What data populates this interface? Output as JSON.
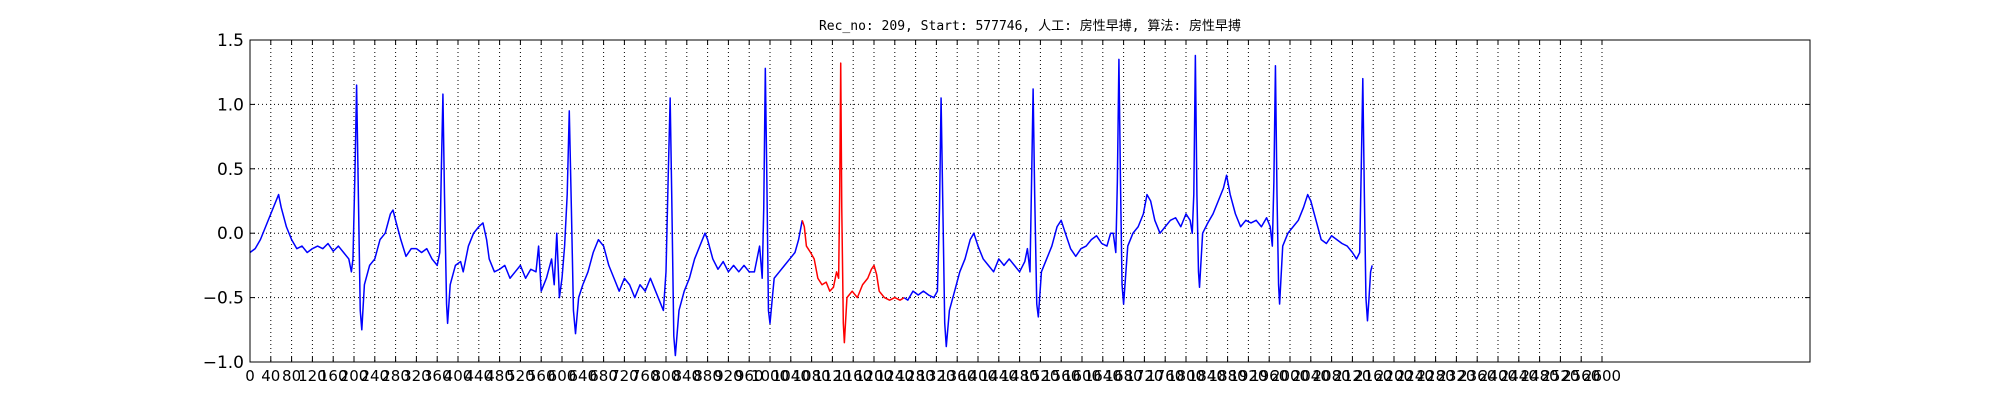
{
  "chart_data": {
    "type": "line",
    "title": "Rec_no: 209, Start: 577746, 人工: 房性早搏, 算法: 房性早搏",
    "xlabel": "",
    "ylabel": "",
    "xlim": [
      0,
      3000
    ],
    "ylim": [
      -1.0,
      1.5
    ],
    "grid": true,
    "y_ticks": [
      -1.0,
      -0.5,
      0.0,
      0.5,
      1.0,
      1.5
    ],
    "y_tick_labels": [
      "−1.0",
      "−0.5",
      "0.0",
      "0.5",
      "1.0",
      "1.5"
    ],
    "x_ticks": [
      0,
      40,
      80,
      120,
      160,
      200,
      240,
      280,
      320,
      360,
      400,
      440,
      480,
      520,
      560,
      600,
      640,
      680,
      720,
      760,
      800,
      840,
      880,
      920,
      960,
      1000,
      1040,
      1080,
      1120,
      1160,
      1200,
      1240,
      1280,
      1320,
      1360,
      1400,
      1440,
      1480,
      1520,
      1560,
      1600,
      1640,
      1680,
      1720,
      1760,
      1800,
      1840,
      1880,
      1920,
      1960,
      2000,
      2040,
      2080,
      2120,
      2160,
      2200,
      2240,
      2280,
      2320,
      2360,
      2400,
      2440,
      2480,
      2520,
      2560,
      2600
    ],
    "x_tick_labels": [
      "0",
      "40",
      "80",
      "120",
      "160",
      "200",
      "240",
      "280",
      "320",
      "360",
      "400",
      "440",
      "480",
      "520",
      "560",
      "600",
      "640",
      "680",
      "720",
      "760",
      "800",
      "840",
      "880",
      "920",
      "960",
      "1000",
      "1040",
      "1080",
      "1120",
      "1160",
      "1200",
      "1240",
      "1280",
      "1320",
      "1360",
      "1400",
      "1440",
      "1480",
      "1520",
      "1560",
      "1600",
      "1640",
      "1680",
      "1720",
      "1760",
      "1800",
      "1840",
      "1880",
      "1920",
      "1960",
      "2000",
      "2040",
      "2080",
      "2120",
      "2160",
      "2200",
      "2240",
      "2280",
      "2320",
      "2360",
      "2400",
      "2440",
      "2480",
      "2520",
      "2560",
      "2600"
    ],
    "colors": {
      "normal": "#0000ff",
      "highlight": "#ff0000"
    },
    "series": [
      {
        "color": "#0000ff",
        "points": [
          [
            0,
            -0.15
          ],
          [
            10,
            -0.12
          ],
          [
            20,
            -0.05
          ],
          [
            30,
            0.05
          ],
          [
            40,
            0.15
          ],
          [
            50,
            0.25
          ],
          [
            55,
            0.3
          ],
          [
            60,
            0.2
          ],
          [
            70,
            0.05
          ],
          [
            80,
            -0.05
          ],
          [
            90,
            -0.12
          ],
          [
            100,
            -0.1
          ],
          [
            110,
            -0.15
          ],
          [
            120,
            -0.12
          ],
          [
            130,
            -0.1
          ],
          [
            140,
            -0.12
          ],
          [
            150,
            -0.08
          ],
          [
            160,
            -0.14
          ],
          [
            170,
            -0.1
          ],
          [
            180,
            -0.15
          ],
          [
            190,
            -0.2
          ],
          [
            195,
            -0.3
          ],
          [
            198,
            -0.2
          ],
          [
            202,
            0.5
          ],
          [
            205,
            1.15
          ],
          [
            208,
            0.4
          ],
          [
            212,
            -0.6
          ],
          [
            215,
            -0.75
          ],
          [
            220,
            -0.4
          ],
          [
            230,
            -0.25
          ],
          [
            240,
            -0.2
          ],
          [
            250,
            -0.05
          ],
          [
            260,
            0.0
          ],
          [
            270,
            0.15
          ],
          [
            275,
            0.18
          ],
          [
            280,
            0.1
          ],
          [
            290,
            -0.05
          ],
          [
            300,
            -0.18
          ],
          [
            310,
            -0.12
          ],
          [
            320,
            -0.12
          ],
          [
            330,
            -0.15
          ],
          [
            340,
            -0.12
          ],
          [
            350,
            -0.2
          ],
          [
            360,
            -0.25
          ],
          [
            365,
            -0.15
          ],
          [
            368,
            0.5
          ],
          [
            371,
            1.08
          ],
          [
            374,
            0.3
          ],
          [
            378,
            -0.55
          ],
          [
            380,
            -0.7
          ],
          [
            385,
            -0.4
          ],
          [
            395,
            -0.25
          ],
          [
            405,
            -0.22
          ],
          [
            410,
            -0.3
          ],
          [
            420,
            -0.1
          ],
          [
            430,
            0.0
          ],
          [
            440,
            0.05
          ],
          [
            448,
            0.08
          ],
          [
            455,
            -0.05
          ],
          [
            460,
            -0.2
          ],
          [
            470,
            -0.3
          ],
          [
            480,
            -0.28
          ],
          [
            490,
            -0.25
          ],
          [
            500,
            -0.35
          ],
          [
            510,
            -0.3
          ],
          [
            520,
            -0.25
          ],
          [
            530,
            -0.35
          ],
          [
            540,
            -0.28
          ],
          [
            550,
            -0.3
          ],
          [
            555,
            -0.1
          ],
          [
            560,
            -0.45
          ],
          [
            570,
            -0.35
          ],
          [
            580,
            -0.2
          ],
          [
            585,
            -0.4
          ],
          [
            590,
            0.0
          ],
          [
            595,
            -0.5
          ],
          [
            600,
            -0.35
          ],
          [
            605,
            -0.1
          ],
          [
            610,
            0.3
          ],
          [
            614,
            0.95
          ],
          [
            618,
            0.2
          ],
          [
            622,
            -0.6
          ],
          [
            626,
            -0.78
          ],
          [
            632,
            -0.5
          ],
          [
            640,
            -0.4
          ],
          [
            650,
            -0.3
          ],
          [
            660,
            -0.15
          ],
          [
            670,
            -0.05
          ],
          [
            680,
            -0.1
          ],
          [
            690,
            -0.25
          ],
          [
            700,
            -0.35
          ],
          [
            710,
            -0.45
          ],
          [
            720,
            -0.35
          ],
          [
            730,
            -0.4
          ],
          [
            740,
            -0.5
          ],
          [
            750,
            -0.4
          ],
          [
            760,
            -0.45
          ],
          [
            770,
            -0.35
          ],
          [
            780,
            -0.45
          ],
          [
            790,
            -0.55
          ],
          [
            795,
            -0.6
          ],
          [
            800,
            -0.3
          ],
          [
            804,
            0.4
          ],
          [
            808,
            1.05
          ],
          [
            811,
            0.3
          ],
          [
            815,
            -0.8
          ],
          [
            818,
            -0.95
          ],
          [
            825,
            -0.6
          ],
          [
            835,
            -0.45
          ],
          [
            845,
            -0.35
          ],
          [
            855,
            -0.2
          ],
          [
            865,
            -0.1
          ],
          [
            875,
            0.0
          ],
          [
            880,
            -0.05
          ],
          [
            890,
            -0.2
          ],
          [
            900,
            -0.28
          ],
          [
            910,
            -0.22
          ],
          [
            920,
            -0.3
          ],
          [
            930,
            -0.25
          ],
          [
            940,
            -0.3
          ],
          [
            950,
            -0.25
          ],
          [
            960,
            -0.3
          ],
          [
            970,
            -0.3
          ],
          [
            975,
            -0.2
          ],
          [
            980,
            -0.1
          ],
          [
            985,
            -0.35
          ],
          [
            988,
            0.2
          ],
          [
            991,
            1.28
          ],
          [
            994,
            0.4
          ],
          [
            997,
            -0.6
          ],
          [
            1000,
            -0.7
          ],
          [
            1008,
            -0.35
          ],
          [
            1018,
            -0.3
          ],
          [
            1028,
            -0.25
          ],
          [
            1038,
            -0.2
          ],
          [
            1048,
            -0.15
          ],
          [
            1055,
            -0.05
          ],
          [
            1062,
            0.1
          ]
        ]
      },
      {
        "color": "#ff0000",
        "points": [
          [
            1062,
            0.1
          ],
          [
            1066,
            0.05
          ],
          [
            1070,
            -0.1
          ],
          [
            1078,
            -0.15
          ],
          [
            1085,
            -0.2
          ],
          [
            1092,
            -0.35
          ],
          [
            1100,
            -0.4
          ],
          [
            1108,
            -0.38
          ],
          [
            1115,
            -0.45
          ],
          [
            1122,
            -0.42
          ],
          [
            1128,
            -0.3
          ],
          [
            1132,
            -0.35
          ],
          [
            1134,
            0.3
          ],
          [
            1136,
            1.32
          ],
          [
            1138,
            0.2
          ],
          [
            1141,
            -0.7
          ],
          [
            1143,
            -0.85
          ],
          [
            1148,
            -0.5
          ],
          [
            1158,
            -0.45
          ],
          [
            1168,
            -0.5
          ],
          [
            1178,
            -0.4
          ],
          [
            1188,
            -0.35
          ],
          [
            1195,
            -0.28
          ],
          [
            1200,
            -0.25
          ],
          [
            1205,
            -0.32
          ],
          [
            1210,
            -0.45
          ],
          [
            1220,
            -0.5
          ],
          [
            1230,
            -0.52
          ],
          [
            1240,
            -0.5
          ],
          [
            1250,
            -0.52
          ],
          [
            1258,
            -0.5
          ]
        ]
      },
      {
        "color": "#0000ff",
        "points": [
          [
            1258,
            -0.5
          ],
          [
            1265,
            -0.52
          ],
          [
            1275,
            -0.45
          ],
          [
            1285,
            -0.48
          ],
          [
            1295,
            -0.45
          ],
          [
            1305,
            -0.48
          ],
          [
            1315,
            -0.5
          ],
          [
            1322,
            -0.45
          ],
          [
            1326,
            0.2
          ],
          [
            1329,
            1.05
          ],
          [
            1332,
            0.3
          ],
          [
            1336,
            -0.7
          ],
          [
            1339,
            -0.88
          ],
          [
            1345,
            -0.6
          ],
          [
            1355,
            -0.45
          ],
          [
            1365,
            -0.3
          ],
          [
            1375,
            -0.2
          ],
          [
            1385,
            -0.05
          ],
          [
            1392,
            0.0
          ],
          [
            1400,
            -0.1
          ],
          [
            1410,
            -0.2
          ],
          [
            1420,
            -0.25
          ],
          [
            1430,
            -0.3
          ],
          [
            1440,
            -0.2
          ],
          [
            1450,
            -0.25
          ],
          [
            1460,
            -0.2
          ],
          [
            1470,
            -0.25
          ],
          [
            1480,
            -0.3
          ],
          [
            1490,
            -0.22
          ],
          [
            1495,
            -0.12
          ],
          [
            1500,
            -0.3
          ],
          [
            1503,
            0.4
          ],
          [
            1506,
            1.12
          ],
          [
            1509,
            0.3
          ],
          [
            1513,
            -0.55
          ],
          [
            1516,
            -0.65
          ],
          [
            1522,
            -0.3
          ],
          [
            1532,
            -0.2
          ],
          [
            1542,
            -0.1
          ],
          [
            1552,
            0.05
          ],
          [
            1560,
            0.1
          ],
          [
            1568,
            0.0
          ],
          [
            1578,
            -0.12
          ],
          [
            1588,
            -0.18
          ],
          [
            1598,
            -0.12
          ],
          [
            1608,
            -0.1
          ],
          [
            1618,
            -0.05
          ],
          [
            1628,
            -0.02
          ],
          [
            1638,
            -0.08
          ],
          [
            1648,
            -0.1
          ],
          [
            1655,
            0.0
          ],
          [
            1660,
            0.0
          ],
          [
            1665,
            -0.15
          ],
          [
            1668,
            0.4
          ],
          [
            1671,
            1.35
          ],
          [
            1674,
            0.4
          ],
          [
            1677,
            -0.4
          ],
          [
            1680,
            -0.55
          ],
          [
            1688,
            -0.1
          ],
          [
            1698,
            0.0
          ],
          [
            1708,
            0.05
          ],
          [
            1718,
            0.15
          ],
          [
            1725,
            0.3
          ],
          [
            1732,
            0.25
          ],
          [
            1740,
            0.1
          ],
          [
            1750,
            0.0
          ],
          [
            1760,
            0.05
          ],
          [
            1770,
            0.1
          ],
          [
            1780,
            0.12
          ],
          [
            1790,
            0.05
          ],
          [
            1800,
            0.15
          ],
          [
            1808,
            0.1
          ],
          [
            1812,
            0.0
          ],
          [
            1815,
            0.3
          ],
          [
            1818,
            1.38
          ],
          [
            1821,
            0.3
          ],
          [
            1824,
            -0.3
          ],
          [
            1826,
            -0.42
          ],
          [
            1832,
            0.0
          ],
          [
            1842,
            0.08
          ],
          [
            1852,
            0.15
          ],
          [
            1862,
            0.25
          ],
          [
            1872,
            0.35
          ],
          [
            1878,
            0.45
          ],
          [
            1885,
            0.3
          ],
          [
            1895,
            0.15
          ],
          [
            1905,
            0.05
          ],
          [
            1915,
            0.1
          ],
          [
            1925,
            0.08
          ],
          [
            1935,
            0.1
          ],
          [
            1945,
            0.05
          ],
          [
            1955,
            0.12
          ],
          [
            1962,
            0.05
          ],
          [
            1966,
            -0.1
          ],
          [
            1969,
            0.4
          ],
          [
            1972,
            1.3
          ],
          [
            1975,
            0.3
          ],
          [
            1978,
            -0.4
          ],
          [
            1980,
            -0.55
          ],
          [
            1986,
            -0.1
          ],
          [
            1996,
            0.0
          ],
          [
            2006,
            0.05
          ],
          [
            2016,
            0.1
          ],
          [
            2026,
            0.2
          ],
          [
            2034,
            0.3
          ],
          [
            2040,
            0.25
          ],
          [
            2050,
            0.1
          ],
          [
            2060,
            -0.05
          ],
          [
            2070,
            -0.08
          ],
          [
            2080,
            -0.02
          ],
          [
            2090,
            -0.05
          ],
          [
            2100,
            -0.08
          ],
          [
            2110,
            -0.1
          ],
          [
            2120,
            -0.15
          ],
          [
            2128,
            -0.2
          ],
          [
            2134,
            -0.15
          ],
          [
            2137,
            0.5
          ],
          [
            2140,
            1.2
          ],
          [
            2143,
            0.3
          ],
          [
            2146,
            -0.5
          ],
          [
            2149,
            -0.68
          ],
          [
            2152,
            -0.5
          ],
          [
            2155,
            -0.3
          ],
          [
            2158,
            -0.25
          ]
        ]
      }
    ]
  }
}
